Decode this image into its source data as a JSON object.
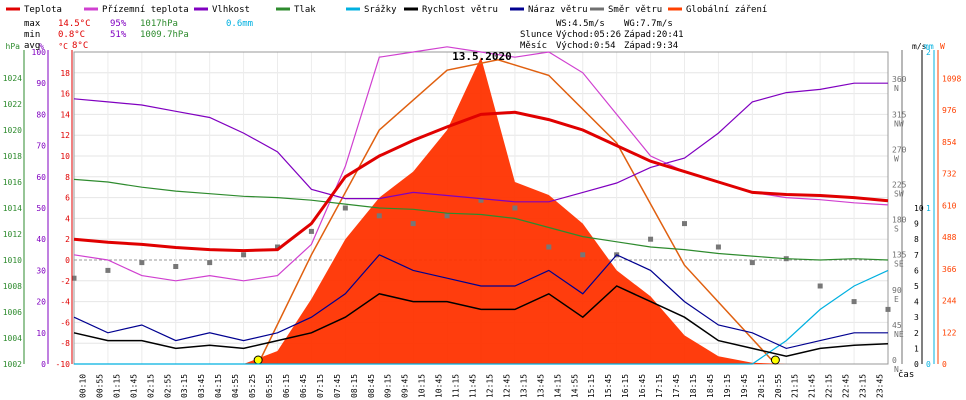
{
  "chart_data": {
    "type": "line",
    "title": "13.5.2020",
    "xlabel": "čas",
    "legend": [
      {
        "name": "Teplota",
        "color": "#e00000"
      },
      {
        "name": "Přízemní teplota",
        "color": "#d040d0"
      },
      {
        "name": "Vlhkost",
        "color": "#8000c0"
      },
      {
        "name": "Tlak",
        "color": "#2e8b2e"
      },
      {
        "name": "Srážky",
        "color": "#00b0e0"
      },
      {
        "name": "Rychlost větru",
        "color": "#000000"
      },
      {
        "name": "Náraz větru",
        "color": "#000090"
      },
      {
        "name": "Směr větru",
        "color": "#707070"
      },
      {
        "name": "Globální záření",
        "color": "#ff4000"
      }
    ],
    "stats": {
      "max_label": "max",
      "min_label": "min",
      "avg_label": "avg",
      "max_temp": "14.5°C",
      "max_hum": "95%",
      "max_press": "1017hPa",
      "max_rain": "0.6mm",
      "min_temp": "0.8°C",
      "min_hum": "51%",
      "min_press": "1009.7hPa",
      "avg_temp": "8°C",
      "ws": "WS:4.5m/s",
      "wg": "WG:7.7m/s",
      "sun_label": "Slunce",
      "sun_rise": "Východ:05:26",
      "sun_set": "Západ:20:41",
      "moon_label": "Měsíc",
      "moon_rise": "Východ:0:54",
      "moon_set": "Západ:9:34"
    },
    "axes": {
      "hpa": {
        "unit": "hPa",
        "color": "#2e8b2e",
        "ticks": [
          1002,
          1004,
          1006,
          1008,
          1010,
          1012,
          1014,
          1016,
          1018,
          1020,
          1022,
          1024
        ]
      },
      "pct": {
        "unit": "%",
        "color": "#8000c0",
        "ticks": [
          0,
          10,
          20,
          30,
          40,
          50,
          60,
          70,
          80,
          90,
          100
        ]
      },
      "temp": {
        "unit": "°C",
        "color": "#e00000",
        "ticks": [
          -10,
          -8,
          -6,
          -4,
          -2,
          0,
          2,
          4,
          6,
          8,
          10,
          12,
          14,
          16,
          18
        ]
      },
      "wind_dir": {
        "unit": "",
        "color": "#707070",
        "ticks": [
          {
            "v": "0",
            "d": "N"
          },
          {
            "v": "45",
            "d": "NE"
          },
          {
            "v": "90",
            "d": "E"
          },
          {
            "v": "135",
            "d": "SE"
          },
          {
            "v": "180",
            "d": "S"
          },
          {
            "v": "225",
            "d": "SW"
          },
          {
            "v": "270",
            "d": "W"
          },
          {
            "v": "315",
            "d": "NW"
          },
          {
            "v": "360",
            "d": "N"
          }
        ]
      },
      "ms": {
        "unit": "m/s",
        "color": "#000000",
        "ticks": [
          0,
          1,
          2,
          3,
          4,
          5,
          6,
          7,
          8,
          9,
          10
        ]
      },
      "mm": {
        "unit": "mm",
        "color": "#00b0e0",
        "ticks": [
          0,
          1,
          2
        ]
      },
      "w": {
        "unit": "W",
        "color": "#ff4000",
        "ticks": [
          0,
          122,
          244,
          366,
          488,
          610,
          732,
          854,
          976,
          1098
        ]
      }
    },
    "x_ticks": [
      "00:10",
      "00:55",
      "01:15",
      "01:45",
      "02:15",
      "02:55",
      "03:15",
      "03:45",
      "04:15",
      "04:55",
      "05:25",
      "05:55",
      "06:15",
      "06:45",
      "07:15",
      "07:45",
      "08:15",
      "08:45",
      "09:15",
      "09:45",
      "10:15",
      "10:45",
      "11:15",
      "11:45",
      "12:15",
      "12:45",
      "13:15",
      "13:45",
      "14:15",
      "14:55",
      "15:15",
      "15:45",
      "16:15",
      "16:45",
      "17:15",
      "17:45",
      "18:15",
      "18:45",
      "19:15",
      "19:45",
      "20:15",
      "20:55",
      "21:15",
      "21:45",
      "22:15",
      "22:45",
      "23:15",
      "23:45"
    ],
    "hours": [
      0,
      1,
      2,
      3,
      4,
      5,
      6,
      7,
      8,
      9,
      10,
      11,
      12,
      13,
      14,
      15,
      16,
      17,
      18,
      19,
      20,
      21,
      22,
      23,
      24
    ],
    "series": [
      {
        "name": "Teplota",
        "axis": "temp",
        "values": [
          2.0,
          1.7,
          1.5,
          1.2,
          1.0,
          0.9,
          1.0,
          3.5,
          8.0,
          10.0,
          11.5,
          12.8,
          14.0,
          14.2,
          13.5,
          12.5,
          11.0,
          9.5,
          8.5,
          7.5,
          6.5,
          6.3,
          6.2,
          6.0,
          5.7
        ]
      },
      {
        "name": "Přízemní teplota",
        "axis": "temp",
        "values": [
          0.5,
          0.0,
          -1.5,
          -2.0,
          -1.5,
          -2.0,
          -1.5,
          1.5,
          9.0,
          19.5,
          20.0,
          20.5,
          20.0,
          19.5,
          20.0,
          18.0,
          14.0,
          10.0,
          8.5,
          7.5,
          6.5,
          6.0,
          5.8,
          5.5,
          5.3
        ]
      },
      {
        "name": "Vlhkost",
        "axis": "pct",
        "values": [
          85,
          84,
          83,
          81,
          79,
          74,
          68,
          56,
          53,
          53,
          55,
          54,
          53,
          52,
          52,
          55,
          58,
          63,
          66,
          74,
          84,
          87,
          88,
          90,
          90
        ]
      },
      {
        "name": "Tlak",
        "axis": "hpa",
        "values": [
          1016.2,
          1016.0,
          1015.6,
          1015.3,
          1015.1,
          1014.9,
          1014.8,
          1014.6,
          1014.3,
          1014.0,
          1013.9,
          1013.6,
          1013.5,
          1013.2,
          1012.5,
          1011.8,
          1011.4,
          1011.0,
          1010.8,
          1010.5,
          1010.3,
          1010.1,
          1010.0,
          1010.1,
          1010.0
        ]
      },
      {
        "name": "Srážky",
        "axis": "mm",
        "values": [
          0,
          0,
          0,
          0,
          0,
          0,
          0,
          0,
          0,
          0,
          0,
          0,
          0,
          0,
          0,
          0,
          0,
          0,
          0,
          0,
          0,
          0.15,
          0.35,
          0.5,
          0.6
        ]
      },
      {
        "name": "Rychlost větru",
        "axis": "ms",
        "values": [
          2.0,
          1.5,
          1.5,
          1.0,
          1.2,
          1.0,
          1.5,
          2.0,
          3.0,
          4.5,
          4.0,
          4.0,
          3.5,
          3.5,
          4.5,
          3.0,
          5.0,
          4.0,
          3.0,
          1.5,
          1.0,
          0.5,
          1.0,
          1.2,
          1.3
        ]
      },
      {
        "name": "Náraz větru",
        "axis": "ms",
        "values": [
          3.0,
          2.0,
          2.5,
          1.5,
          2.0,
          1.5,
          2.0,
          3.0,
          4.5,
          7.0,
          6.0,
          5.5,
          5.0,
          5.0,
          6.0,
          4.5,
          7.0,
          6.0,
          4.0,
          2.5,
          2.0,
          1.0,
          1.5,
          2.0,
          2.0
        ]
      },
      {
        "name": "Globální záření",
        "axis": "w",
        "values": [
          0,
          0,
          0,
          0,
          0,
          0,
          50,
          250,
          480,
          640,
          740,
          900,
          1180,
          700,
          650,
          540,
          360,
          260,
          110,
          30,
          5,
          0,
          0,
          0,
          0
        ]
      }
    ],
    "wind_direction_points": {
      "axis": "wind_dir",
      "hours": [
        0,
        1,
        2,
        3,
        4,
        5,
        6,
        7,
        8,
        9,
        10,
        11,
        12,
        13,
        14,
        15,
        16,
        17,
        18,
        19,
        20,
        21,
        22,
        23,
        24
      ],
      "values": [
        110,
        120,
        130,
        125,
        130,
        140,
        150,
        170,
        200,
        190,
        180,
        190,
        210,
        200,
        150,
        140,
        140,
        160,
        180,
        150,
        130,
        135,
        100,
        80,
        70
      ]
    },
    "clear_sky_radiation": {
      "axis": "w",
      "hours": [
        5.43,
        7,
        9,
        11,
        12.5,
        14,
        16,
        18,
        20.68
      ],
      "values": [
        0,
        420,
        900,
        1130,
        1170,
        1110,
        850,
        380,
        0
      ]
    }
  }
}
